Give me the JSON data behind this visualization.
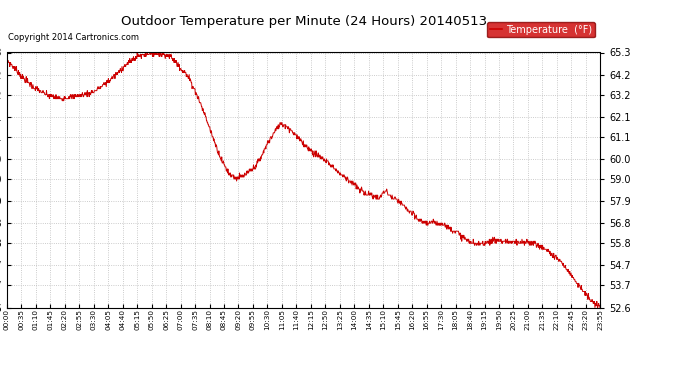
{
  "title": "Outdoor Temperature per Minute (24 Hours) 20140513",
  "copyright_text": "Copyright 2014 Cartronics.com",
  "legend_label": "Temperature  (°F)",
  "legend_bg": "#cc0000",
  "legend_text_color": "#ffffff",
  "line_color": "#cc0000",
  "background_color": "#ffffff",
  "plot_bg_color": "#ffffff",
  "grid_color": "#bbbbbb",
  "border_color": "#000000",
  "ylim": [
    52.6,
    65.3
  ],
  "yticks": [
    52.6,
    53.7,
    54.7,
    55.8,
    56.8,
    57.9,
    59.0,
    60.0,
    61.1,
    62.1,
    63.2,
    64.2,
    65.3
  ],
  "xtick_labels": [
    "00:00",
    "00:35",
    "01:10",
    "01:45",
    "02:20",
    "02:55",
    "03:30",
    "04:05",
    "04:40",
    "05:15",
    "05:50",
    "06:25",
    "07:00",
    "07:35",
    "08:10",
    "08:45",
    "09:20",
    "09:55",
    "10:30",
    "11:05",
    "11:40",
    "12:15",
    "12:50",
    "13:25",
    "14:00",
    "14:35",
    "15:10",
    "15:45",
    "16:20",
    "16:55",
    "17:30",
    "18:05",
    "18:40",
    "19:15",
    "19:50",
    "20:25",
    "21:00",
    "21:35",
    "22:10",
    "22:45",
    "23:20",
    "23:55"
  ],
  "temp_profile": [
    64.9,
    64.6,
    64.2,
    63.9,
    63.6,
    63.4,
    63.2,
    63.1,
    63.0,
    63.05,
    63.1,
    63.15,
    63.2,
    63.3,
    63.5,
    63.7,
    64.0,
    64.3,
    64.6,
    64.9,
    65.1,
    65.2,
    65.3,
    65.25,
    65.2,
    65.1,
    64.8,
    64.4,
    64.0,
    63.3,
    62.5,
    61.6,
    60.7,
    59.9,
    59.3,
    59.05,
    59.1,
    59.3,
    59.6,
    60.1,
    60.8,
    61.3,
    61.8,
    61.6,
    61.3,
    60.9,
    60.6,
    60.3,
    60.1,
    59.9,
    59.6,
    59.3,
    59.05,
    58.8,
    58.5,
    58.3,
    58.2,
    58.0,
    58.4,
    58.1,
    57.9,
    57.6,
    57.3,
    57.0,
    56.85,
    56.8,
    56.85,
    56.75,
    56.55,
    56.35,
    56.1,
    55.85,
    55.75,
    55.8,
    55.9,
    55.95,
    55.9,
    55.88,
    55.82,
    55.82,
    55.85,
    55.78,
    55.6,
    55.4,
    55.15,
    54.85,
    54.45,
    54.05,
    53.6,
    53.15,
    52.8,
    52.62
  ]
}
